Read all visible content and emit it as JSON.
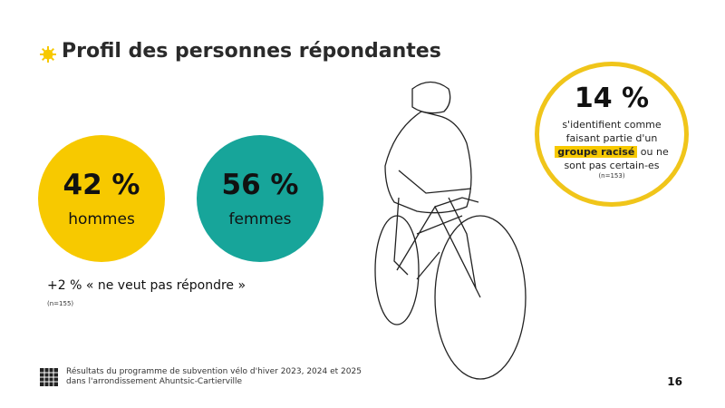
{
  "header": {
    "title": "Profil des personnes répondantes",
    "icon": "sun-icon"
  },
  "stats": {
    "men": {
      "value": "42 %",
      "label": "hommes",
      "color": "#f7c900"
    },
    "women": {
      "value": "56 %",
      "label": "femmes",
      "color": "#17a59a"
    },
    "extra": "+2 % « ne veut pas répondre »",
    "n": "(n=155)"
  },
  "racialized": {
    "value": "14 %",
    "line1": "s'identifient comme",
    "line2": "faisant partie d'un",
    "highlight": "groupe racisé",
    "line3": " ou ne",
    "line4": "sont pas certain-es",
    "n": "(n=153)",
    "color": "#f0c51a"
  },
  "footer": {
    "line1": "Résultats du programme de subvention vélo d'hiver 2023, 2024 et 2025",
    "line2": "dans l'arrondissement Ahuntsic-Cartierville",
    "page": "16"
  }
}
